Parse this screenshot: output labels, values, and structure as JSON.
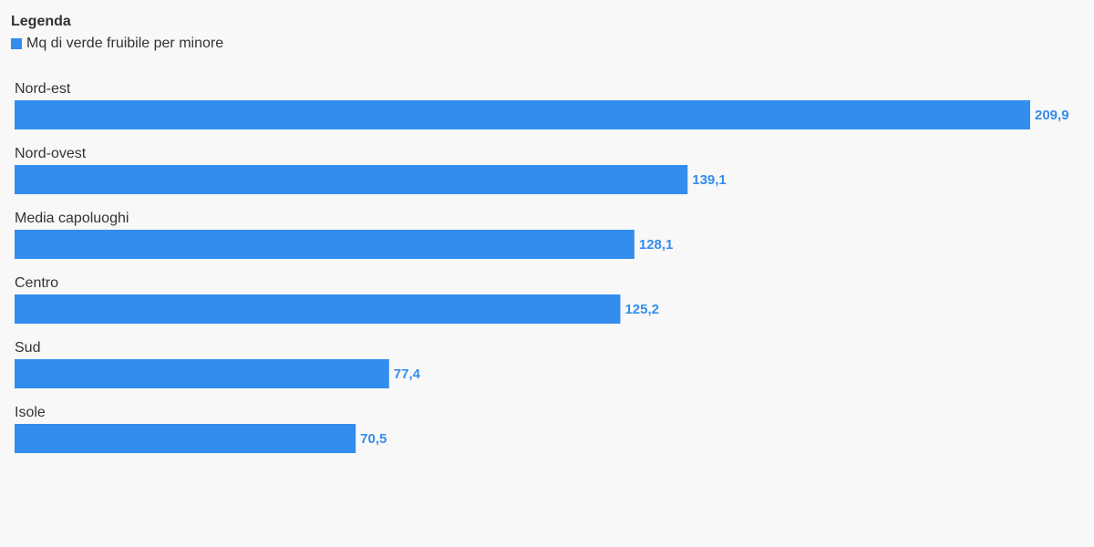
{
  "chart_data": {
    "type": "bar",
    "orientation": "horizontal",
    "legend_title": "Legenda",
    "categories": [
      "Nord-est",
      "Nord-ovest",
      "Media capoluoghi",
      "Centro",
      "Sud",
      "Isole"
    ],
    "series": [
      {
        "name": "Mq di verde fruibile per minore",
        "color": "#338ded",
        "values": [
          209.9,
          139.1,
          128.1,
          125.2,
          77.4,
          70.5
        ],
        "value_labels": [
          "209,9",
          "139,1",
          "128,1",
          "125,2",
          "77,4",
          "70,5"
        ]
      }
    ]
  }
}
